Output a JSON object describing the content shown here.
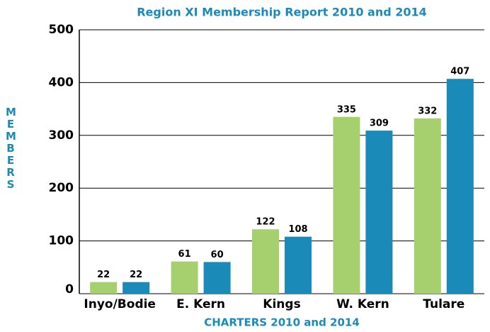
{
  "chart_data": {
    "type": "bar",
    "title": "Region XI Membership Report 2010 and 2014",
    "x_label": "CHARTERS 2010 and 2014",
    "y_label": "MEMBERS",
    "categories": [
      "Inyo/Bodie",
      "E. Kern",
      "Kings",
      "W. Kern",
      "Tulare"
    ],
    "series": [
      {
        "color": "#a6d06e",
        "values": [
          22,
          61,
          122,
          335,
          332
        ]
      },
      {
        "color": "#1a8ab8",
        "values": [
          22,
          60,
          108,
          309,
          407
        ]
      }
    ],
    "ylim": [
      0,
      500
    ],
    "yticks": [
      0,
      100,
      200,
      300,
      400,
      500
    ],
    "grid": true
  }
}
